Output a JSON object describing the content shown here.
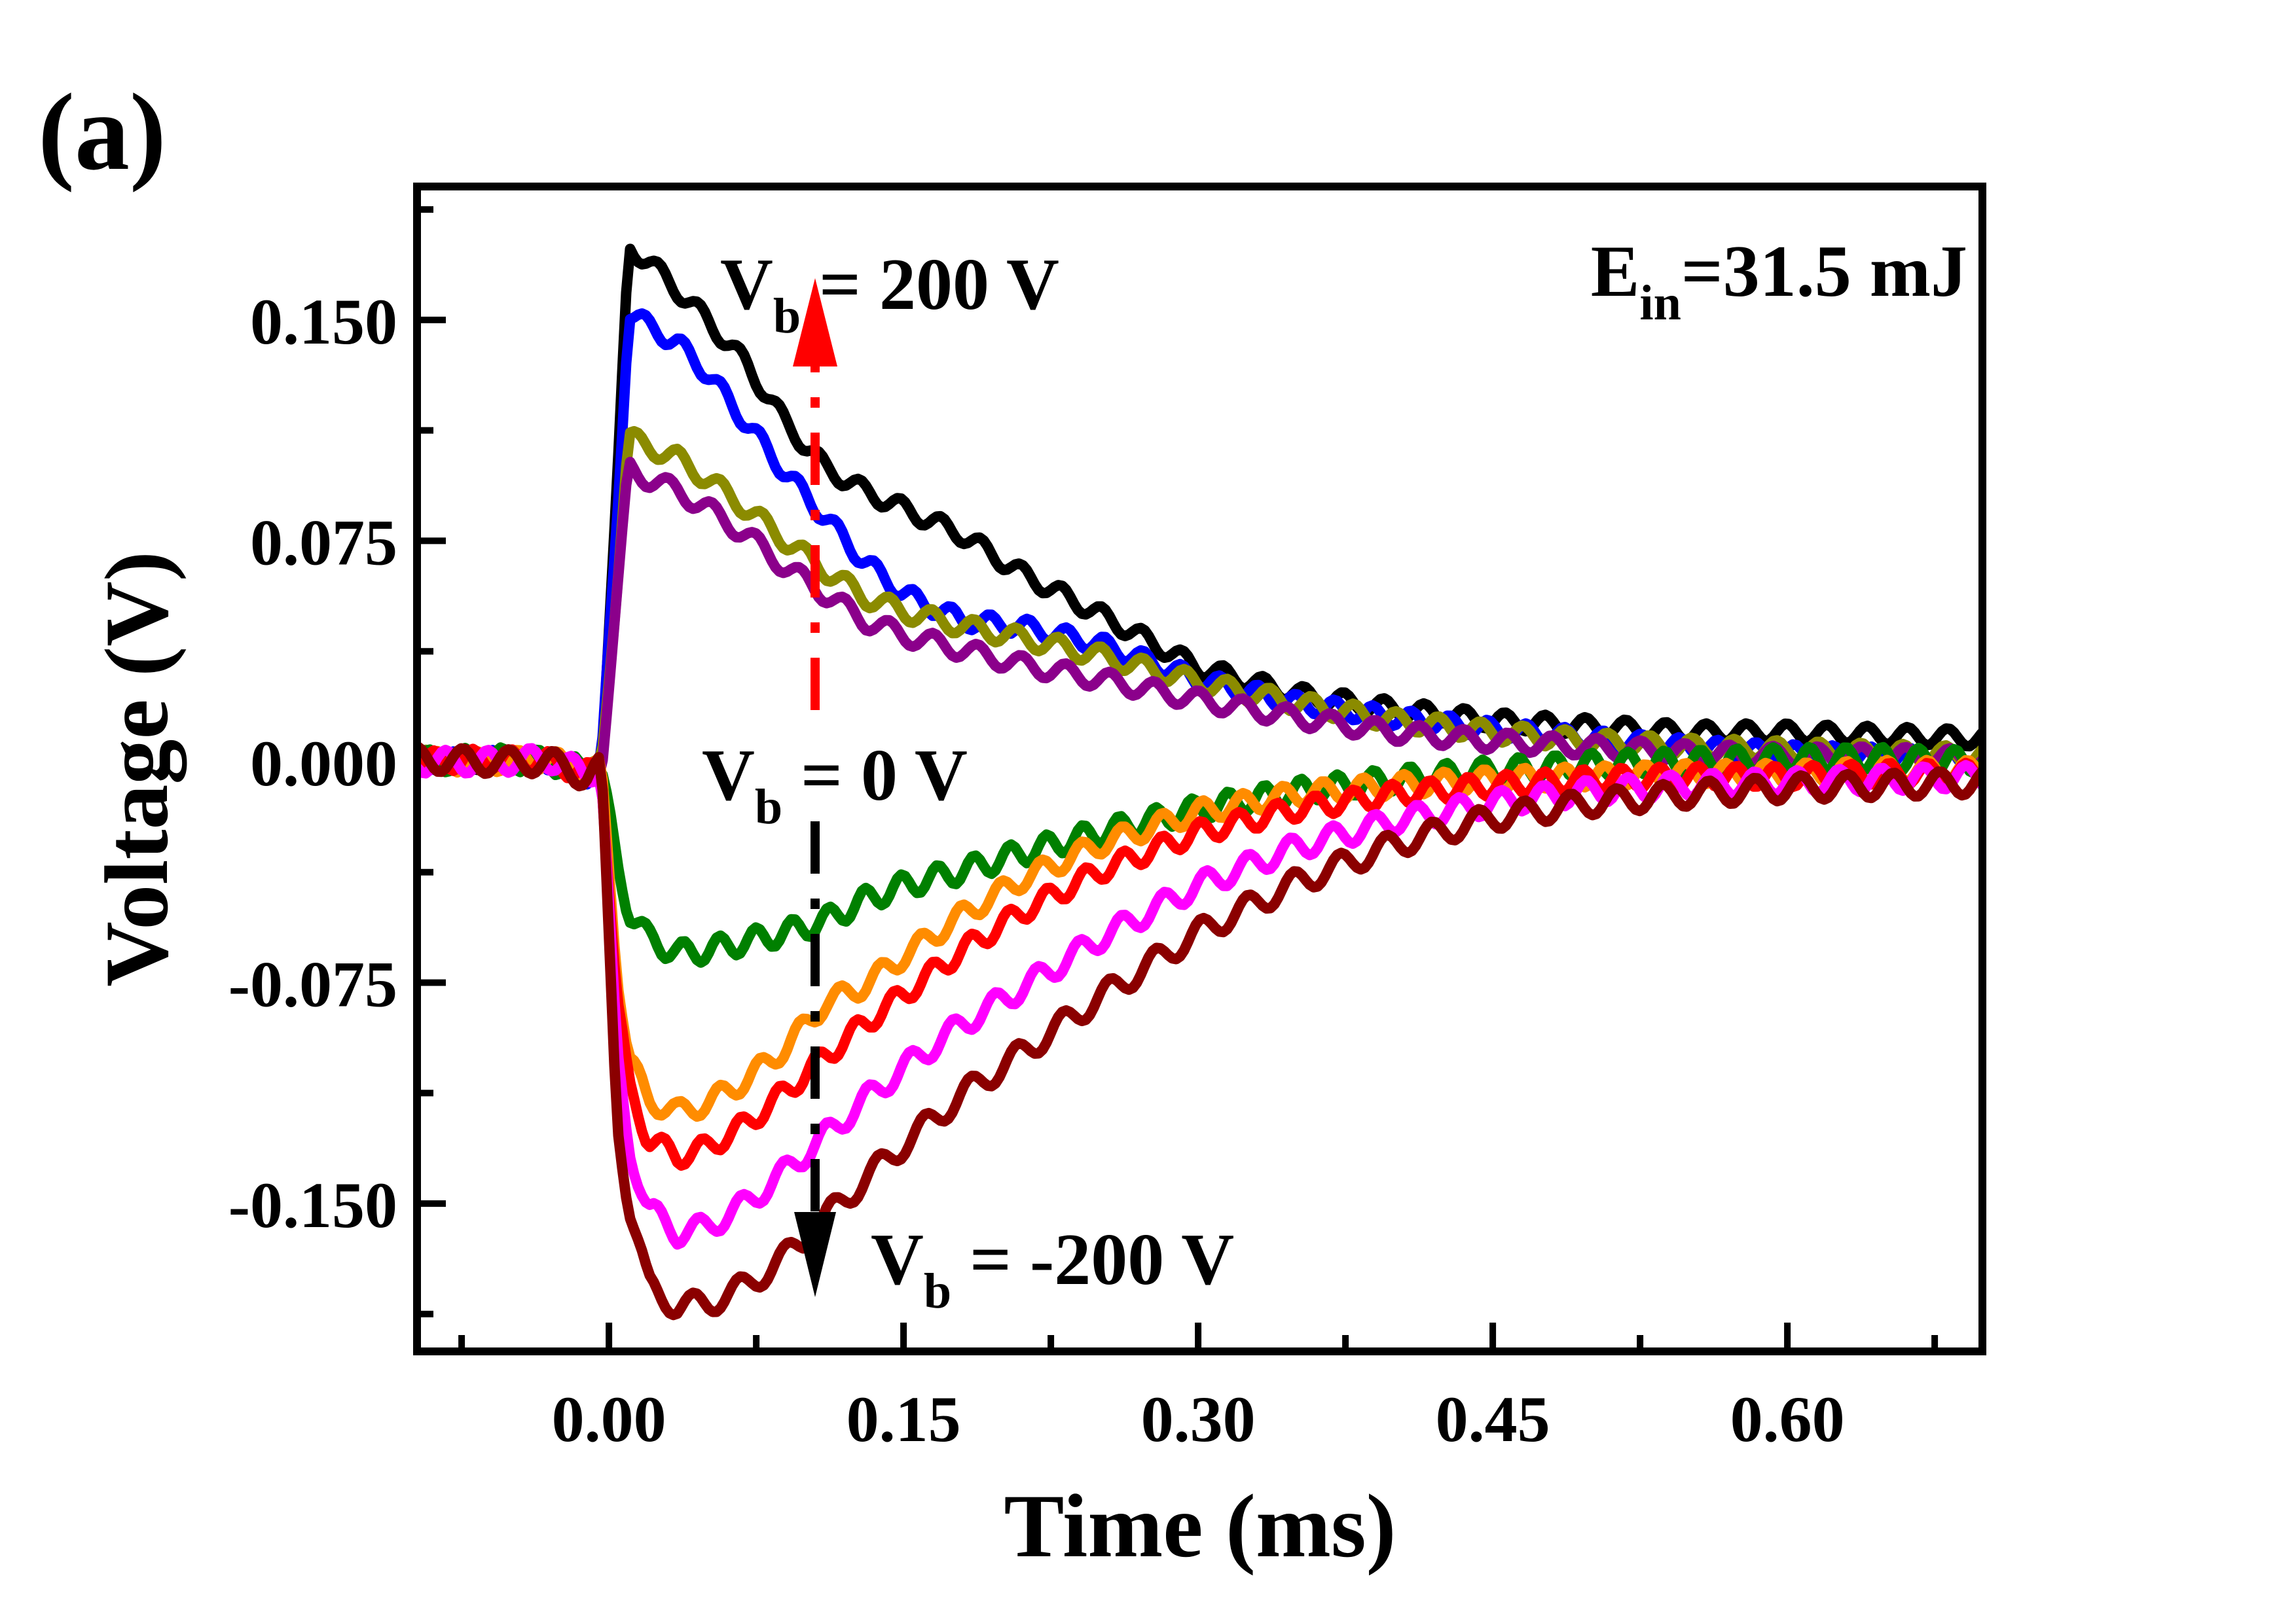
{
  "panel_label": "(a)",
  "annotations": {
    "vb_200": {
      "prefix": "V",
      "sub": "b",
      "rest": " = 200 V",
      "color": "#000000"
    },
    "vb_0": {
      "prefix": "V",
      "sub": "b",
      "rest": " = 0 V",
      "color": "#008000"
    },
    "vb_neg200": {
      "prefix": "V",
      "sub": "b",
      "rest": " = -200 V",
      "color": "#8B0000"
    },
    "e_in": {
      "prefix": "E",
      "sub": "in",
      "rest": "=31.5 mJ",
      "color": "#000000"
    },
    "arrow_up": {
      "direction": "up",
      "color": "#FF0000"
    },
    "arrow_down": {
      "direction": "down",
      "color": "#000000"
    }
  },
  "axes": {
    "x": {
      "label": "Time (ms)",
      "major": [
        0.0,
        0.15,
        0.3,
        0.45,
        0.6
      ],
      "major_labels": [
        "0.00",
        "0.15",
        "0.30",
        "0.45",
        "0.60"
      ],
      "minor": [
        -0.075,
        0.075,
        0.225,
        0.375,
        0.525,
        0.675
      ]
    },
    "y": {
      "label": "Voltage (V)",
      "major": [
        0.15,
        0.075,
        0.0,
        -0.075,
        -0.15
      ],
      "major_labels": [
        "0.150",
        "0.075",
        "0.000",
        "-0.075",
        "-0.150"
      ],
      "minor": [
        0.1875,
        0.1125,
        0.0375,
        -0.0375,
        -0.1125,
        -0.1875
      ]
    }
  },
  "chart_data": {
    "type": "line",
    "title": "",
    "xlabel": "Time (ms)",
    "ylabel": "Voltage (V)",
    "xlim": [
      -0.0977,
      0.6993
    ],
    "ylim": [
      -0.2002,
      0.1953
    ],
    "grid": false,
    "legend": "none (in-plot text annotations only)",
    "x": [
      -0.098,
      -0.06,
      -0.03,
      -0.012,
      -0.004,
      0.004,
      0.01,
      0.02,
      0.035,
      0.05,
      0.07,
      0.09,
      0.11,
      0.13,
      0.15,
      0.18,
      0.21,
      0.25,
      0.3,
      0.35,
      0.4,
      0.45,
      0.5,
      0.55,
      0.6,
      0.65,
      0.7
    ],
    "series": [
      {
        "id": "black",
        "label": "Vb = 200 V",
        "color": "#000000",
        "ripple_amp": 0.003,
        "ripple_period": 0.0205,
        "values": [
          0.001,
          0.0,
          0.001,
          -0.005,
          -0.002,
          0.09,
          0.175,
          0.17,
          0.16,
          0.15,
          0.135,
          0.115,
          0.1,
          0.092,
          0.086,
          0.077,
          0.064,
          0.05,
          0.032,
          0.023,
          0.018,
          0.014,
          0.012,
          0.01,
          0.01,
          0.009,
          0.008
        ]
      },
      {
        "id": "blue",
        "label": "",
        "color": "#0000FF",
        "ripple_amp": 0.003,
        "ripple_period": 0.0195,
        "values": [
          0.0,
          0.001,
          0.0,
          -0.005,
          -0.002,
          0.08,
          0.153,
          0.148,
          0.142,
          0.132,
          0.115,
          0.098,
          0.083,
          0.068,
          0.057,
          0.048,
          0.046,
          0.04,
          0.028,
          0.02,
          0.015,
          0.011,
          0.008,
          0.005,
          0.003,
          0.002,
          0.001
        ]
      },
      {
        "id": "dark-yellow",
        "label": "",
        "color": "#8B8B00",
        "ripple_amp": 0.0032,
        "ripple_period": 0.0215,
        "values": [
          0.001,
          0.0,
          0.0,
          -0.004,
          -0.002,
          0.06,
          0.11,
          0.107,
          0.103,
          0.096,
          0.086,
          0.075,
          0.065,
          0.056,
          0.051,
          0.046,
          0.042,
          0.036,
          0.027,
          0.02,
          0.014,
          0.01,
          0.007,
          0.005,
          0.004,
          0.003,
          0.002
        ]
      },
      {
        "id": "purple",
        "label": "",
        "color": "#8B008B",
        "ripple_amp": 0.0032,
        "ripple_period": 0.0225,
        "values": [
          0.0,
          0.0,
          0.001,
          -0.004,
          -0.002,
          0.055,
          0.1,
          0.096,
          0.092,
          0.086,
          0.077,
          0.066,
          0.057,
          0.048,
          0.043,
          0.038,
          0.033,
          0.028,
          0.021,
          0.015,
          0.01,
          0.007,
          0.005,
          0.003,
          0.002,
          0.002,
          0.001
        ]
      },
      {
        "id": "green",
        "label": "Vb = 0 V",
        "color": "#008000",
        "ripple_amp": 0.004,
        "ripple_period": 0.0185,
        "values": [
          0.0,
          0.001,
          0.0,
          -0.003,
          -0.002,
          -0.035,
          -0.05,
          -0.06,
          -0.065,
          -0.064,
          -0.061,
          -0.058,
          -0.054,
          -0.047,
          -0.042,
          -0.037,
          -0.031,
          -0.024,
          -0.016,
          -0.01,
          -0.006,
          -0.003,
          -0.001,
          0.0,
          0.001,
          0.001,
          0.0
        ]
      },
      {
        "id": "orange",
        "label": "",
        "color": "#FF8C00",
        "ripple_amp": 0.0036,
        "ripple_period": 0.0205,
        "values": [
          0.0,
          0.0,
          0.001,
          -0.004,
          -0.002,
          -0.07,
          -0.1,
          -0.115,
          -0.119,
          -0.116,
          -0.108,
          -0.097,
          -0.082,
          -0.076,
          -0.066,
          -0.052,
          -0.04,
          -0.028,
          -0.017,
          -0.011,
          -0.008,
          -0.006,
          -0.005,
          -0.004,
          -0.004,
          -0.003,
          -0.003
        ]
      },
      {
        "id": "red",
        "label": "",
        "color": "#FF0000",
        "ripple_amp": 0.0036,
        "ripple_period": 0.0195,
        "values": [
          0.0,
          0.001,
          0.0,
          -0.004,
          -0.002,
          -0.08,
          -0.11,
          -0.128,
          -0.134,
          -0.131,
          -0.123,
          -0.112,
          -0.1,
          -0.089,
          -0.079,
          -0.064,
          -0.051,
          -0.037,
          -0.024,
          -0.016,
          -0.011,
          -0.008,
          -0.006,
          -0.005,
          -0.005,
          -0.004,
          -0.004
        ]
      },
      {
        "id": "magenta",
        "label": "",
        "color": "#FF00FF",
        "ripple_amp": 0.004,
        "ripple_period": 0.0215,
        "values": [
          0.0,
          0.0,
          0.001,
          -0.004,
          -0.002,
          -0.1,
          -0.13,
          -0.152,
          -0.16,
          -0.158,
          -0.15,
          -0.139,
          -0.127,
          -0.115,
          -0.104,
          -0.089,
          -0.077,
          -0.06,
          -0.042,
          -0.029,
          -0.02,
          -0.014,
          -0.01,
          -0.008,
          -0.007,
          -0.006,
          -0.005
        ]
      },
      {
        "id": "dark-red",
        "label": "Vb = -200 V",
        "color": "#8B0000",
        "ripple_amp": 0.0042,
        "ripple_period": 0.0235,
        "values": [
          0.001,
          0.0,
          0.0,
          -0.005,
          -0.002,
          -0.12,
          -0.15,
          -0.178,
          -0.185,
          -0.184,
          -0.178,
          -0.168,
          -0.155,
          -0.142,
          -0.13,
          -0.113,
          -0.099,
          -0.08,
          -0.058,
          -0.041,
          -0.028,
          -0.019,
          -0.014,
          -0.011,
          -0.009,
          -0.008,
          -0.007
        ]
      }
    ]
  }
}
